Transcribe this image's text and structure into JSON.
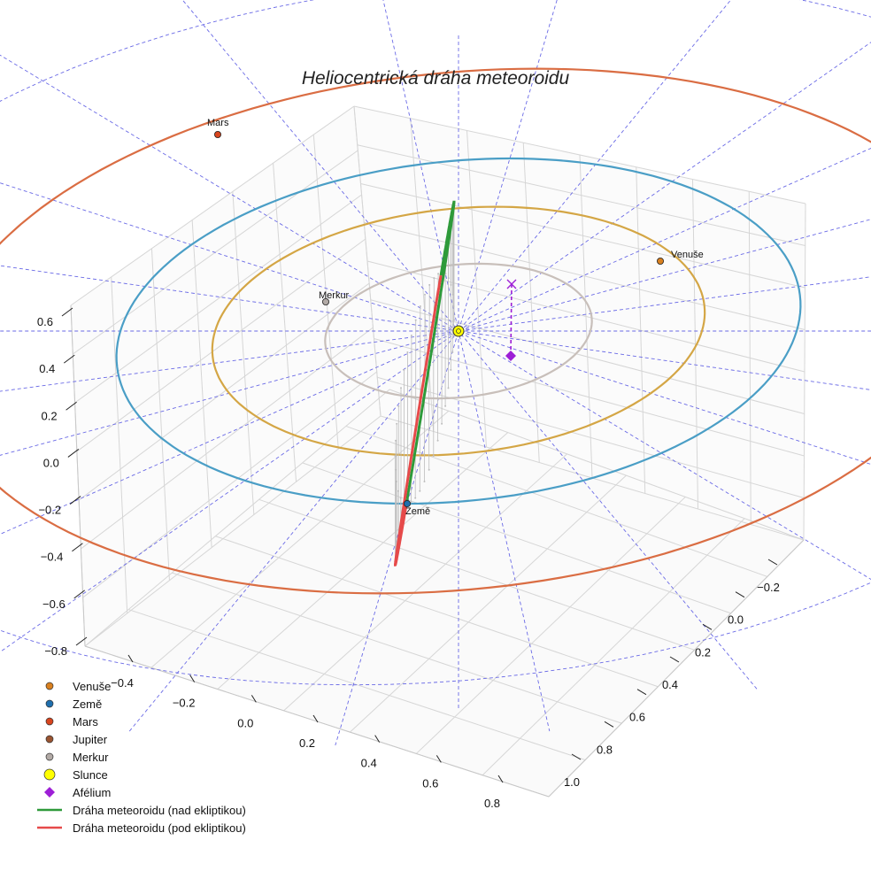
{
  "chart_data": {
    "type": "line",
    "projection": "3d",
    "title": "Heliocentrická dráha meteoroidu",
    "xlabel": "",
    "ylabel": "",
    "zlabel": "",
    "xlim": [
      -0.5,
      0.9
    ],
    "ylim": [
      -0.3,
      1.1
    ],
    "zlim": [
      -0.85,
      0.7
    ],
    "x_ticks": [
      "−0.4",
      "−0.2",
      "0.0",
      "0.2",
      "0.4",
      "0.6",
      "0.8"
    ],
    "y_ticks": [
      "−0.2",
      "0.0",
      "0.2",
      "0.4",
      "0.6",
      "0.8",
      "1.0"
    ],
    "z_ticks": [
      "0.6",
      "0.4",
      "0.2",
      "0.0",
      "−0.2",
      "−0.4",
      "−0.6",
      "−0.8"
    ],
    "grid": true,
    "legend_position": "bottom-left",
    "orbits": [
      {
        "name": "Merkur",
        "a_au": 0.39,
        "color": "#c8bfba"
      },
      {
        "name": "Venuše",
        "a_au": 0.72,
        "color": "#d4a645"
      },
      {
        "name": "Země",
        "a_au": 1.0,
        "color": "#4a9ec6"
      },
      {
        "name": "Mars",
        "a_au": 1.52,
        "color": "#da6d43"
      }
    ],
    "planets": [
      {
        "name": "Venuše",
        "label": "Venuše",
        "color": "#d9801f"
      },
      {
        "name": "Země",
        "label": "Země",
        "color": "#1f6fae"
      },
      {
        "name": "Mars",
        "label": "Mars",
        "color": "#d8451e"
      },
      {
        "name": "Merkur",
        "label": "Merkur",
        "color": "#b2aaa6"
      }
    ],
    "sun": {
      "name": "Slunce",
      "color": "#ffff00"
    },
    "aphelion": {
      "name": "Afélium",
      "color": "#9d1fd6"
    },
    "meteoroid": {
      "above": {
        "name": "Dráha meteoroidu (nad ekliptikou)",
        "color": "#2e9a3a"
      },
      "below": {
        "name": "Dráha meteoroidu (pod ekliptikou)",
        "color": "#e64a4a"
      }
    },
    "legend": [
      {
        "label": "Venuše",
        "marker": "circle",
        "color": "#d9801f"
      },
      {
        "label": "Země",
        "marker": "circle",
        "color": "#1f6fae"
      },
      {
        "label": "Mars",
        "marker": "circle",
        "color": "#d8451e"
      },
      {
        "label": "Jupiter",
        "marker": "circle",
        "color": "#9a5431"
      },
      {
        "label": "Merkur",
        "marker": "circle",
        "color": "#b2aaa6"
      },
      {
        "label": "Slunce",
        "marker": "circle-large",
        "color": "#ffff00"
      },
      {
        "label": "Afélium",
        "marker": "diamond",
        "color": "#9d1fd6"
      },
      {
        "label": "Dráha meteoroidu (nad ekliptikou)",
        "marker": "line",
        "color": "#2e9a3a"
      },
      {
        "label": "Dráha meteoroidu (pod ekliptikou)",
        "marker": "line",
        "color": "#e64a4a"
      }
    ]
  }
}
